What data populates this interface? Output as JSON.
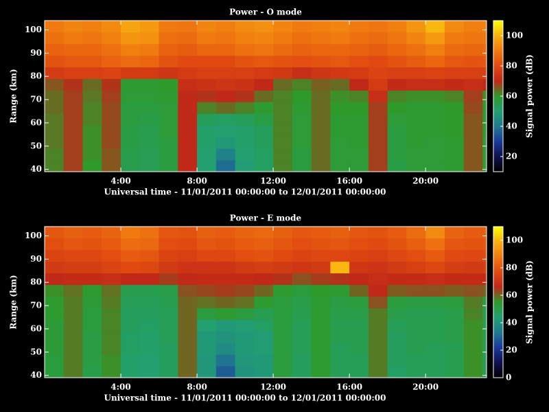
{
  "chart_data": [
    {
      "type": "heatmap",
      "title": "Power - O mode",
      "xlabel": "Universal time - 11/01/2011 00:00:00 to 12/01/2011 00:00:00",
      "ylabel": "Range (km)",
      "colorbar_label": "Signal power (dB)",
      "xlim": [
        0,
        23.2
      ],
      "ylim": [
        39,
        104
      ],
      "zlim": [
        10,
        110
      ],
      "xticks": [
        {
          "value": 4,
          "label": "4:00"
        },
        {
          "value": 8,
          "label": "8:00"
        },
        {
          "value": 12,
          "label": "12:00"
        },
        {
          "value": 16,
          "label": "16:00"
        },
        {
          "value": 20,
          "label": "20:00"
        }
      ],
      "yticks": [
        40,
        50,
        60,
        70,
        80,
        90,
        100
      ],
      "colorbar_ticks": [
        20,
        40,
        60,
        80,
        100
      ],
      "colormap": [
        "#000000",
        "#101050",
        "#1a3a9a",
        "#1f7a8f",
        "#22a070",
        "#2e9a2a",
        "#c02818",
        "#e04a10",
        "#f07a10",
        "#f8b010",
        "#ffff00"
      ],
      "x_bins": [
        0,
        1,
        2,
        3,
        4,
        5,
        6,
        7,
        8,
        9,
        10,
        11,
        12,
        13,
        14,
        15,
        16,
        17,
        18,
        19,
        20,
        21,
        22,
        23,
        23.2
      ],
      "y_bins": [
        39,
        44,
        49,
        54,
        59,
        64,
        69,
        74,
        79,
        84,
        89,
        94,
        99,
        104
      ],
      "values": [
        [
          62,
          68,
          60,
          66,
          55,
          54,
          57,
          70,
          50,
          38,
          49,
          52,
          62,
          57,
          64,
          58,
          58,
          68,
          56,
          58,
          58,
          59,
          66,
          58
        ],
        [
          62,
          68,
          61,
          66,
          55,
          54,
          57,
          70,
          50,
          42,
          50,
          52,
          62,
          57,
          64,
          58,
          58,
          68,
          57,
          58,
          58,
          59,
          66,
          58
        ],
        [
          63,
          68,
          61,
          67,
          56,
          55,
          57,
          70,
          51,
          48,
          51,
          53,
          62,
          58,
          64,
          58,
          59,
          68,
          57,
          59,
          58,
          59,
          66,
          58
        ],
        [
          63,
          68,
          61,
          67,
          56,
          55,
          58,
          70,
          51,
          50,
          51,
          53,
          62,
          58,
          64,
          59,
          59,
          68,
          57,
          59,
          59,
          60,
          66,
          59
        ],
        [
          63,
          68,
          62,
          67,
          57,
          56,
          58,
          70,
          53,
          52,
          53,
          56,
          62,
          58,
          64,
          59,
          59,
          68,
          58,
          59,
          59,
          60,
          66,
          59
        ],
        [
          64,
          68,
          62,
          67,
          57,
          57,
          58,
          70,
          62,
          64,
          62,
          59,
          62,
          59,
          64,
          60,
          60,
          68,
          60,
          59,
          59,
          60,
          67,
          59
        ],
        [
          64,
          68,
          63,
          68,
          58,
          58,
          59,
          70,
          69,
          70,
          69,
          64,
          62,
          60,
          64,
          61,
          62,
          72,
          62,
          61,
          61,
          62,
          68,
          61
        ],
        [
          66,
          69,
          64,
          69,
          59,
          59,
          60,
          72,
          73,
          74,
          73,
          70,
          64,
          62,
          65,
          64,
          70,
          76,
          71,
          72,
          72,
          71,
          72,
          70
        ],
        [
          76,
          77,
          77,
          78,
          76,
          76,
          74,
          76,
          77,
          77,
          77,
          76,
          75,
          72,
          74,
          75,
          76,
          78,
          77,
          77,
          78,
          77,
          77,
          77
        ],
        [
          82,
          83,
          83,
          85,
          87,
          86,
          82,
          80,
          80,
          80,
          82,
          83,
          82,
          81,
          82,
          83,
          81,
          80,
          82,
          84,
          86,
          83,
          82,
          83
        ],
        [
          85,
          86,
          86,
          88,
          91,
          90,
          85,
          84,
          86,
          86,
          88,
          89,
          87,
          85,
          86,
          86,
          85,
          84,
          86,
          88,
          91,
          87,
          86,
          87
        ],
        [
          88,
          90,
          89,
          91,
          95,
          94,
          88,
          87,
          90,
          89,
          91,
          92,
          90,
          88,
          89,
          90,
          88,
          87,
          89,
          92,
          96,
          90,
          89,
          90
        ],
        [
          90,
          92,
          91,
          93,
          98,
          96,
          90,
          89,
          92,
          91,
          93,
          94,
          92,
          90,
          91,
          92,
          90,
          89,
          91,
          95,
          101,
          93,
          91,
          92
        ]
      ]
    },
    {
      "type": "heatmap",
      "title": "Power - E mode",
      "xlabel": "Universal time - 11/01/2011 00:00:00 to 12/01/2011 00:00:00",
      "ylabel": "Range (km)",
      "colorbar_label": "Signal power (dB)",
      "xlim": [
        0,
        23.2
      ],
      "ylim": [
        39,
        104
      ],
      "zlim": [
        0,
        110
      ],
      "xticks": [
        {
          "value": 4,
          "label": "4:00"
        },
        {
          "value": 8,
          "label": "8:00"
        },
        {
          "value": 12,
          "label": "12:00"
        },
        {
          "value": 16,
          "label": "16:00"
        },
        {
          "value": 20,
          "label": "20:00"
        }
      ],
      "yticks": [
        40,
        50,
        60,
        70,
        80,
        90,
        100
      ],
      "colorbar_ticks": [
        0,
        20,
        40,
        60,
        80,
        100
      ],
      "colormap": [
        "#000000",
        "#101050",
        "#1a3a9a",
        "#1f7a8f",
        "#22a070",
        "#2e9a2a",
        "#c02818",
        "#e04a10",
        "#f07a10",
        "#f8b010",
        "#ffff00"
      ],
      "x_bins": [
        0,
        1,
        2,
        3,
        4,
        5,
        6,
        7,
        8,
        9,
        10,
        11,
        12,
        13,
        14,
        15,
        16,
        17,
        18,
        19,
        20,
        21,
        22,
        23,
        23.2
      ],
      "y_bins": [
        39,
        44,
        49,
        54,
        59,
        64,
        69,
        74,
        79,
        84,
        89,
        94,
        99,
        104
      ],
      "values": [
        [
          52,
          58,
          50,
          56,
          45,
          44,
          47,
          60,
          41,
          28,
          40,
          42,
          52,
          47,
          54,
          48,
          48,
          58,
          46,
          48,
          48,
          49,
          56,
          48
        ],
        [
          52,
          58,
          51,
          56,
          45,
          44,
          47,
          60,
          41,
          32,
          41,
          42,
          52,
          47,
          54,
          48,
          48,
          58,
          47,
          48,
          48,
          49,
          56,
          48
        ],
        [
          53,
          58,
          51,
          57,
          46,
          45,
          47,
          60,
          42,
          38,
          42,
          43,
          52,
          48,
          54,
          48,
          49,
          58,
          47,
          49,
          48,
          49,
          56,
          48
        ],
        [
          53,
          58,
          51,
          57,
          46,
          45,
          48,
          60,
          42,
          40,
          42,
          43,
          52,
          48,
          54,
          49,
          49,
          58,
          47,
          49,
          49,
          50,
          56,
          49
        ],
        [
          53,
          58,
          52,
          57,
          47,
          46,
          48,
          60,
          44,
          42,
          43,
          46,
          52,
          48,
          54,
          49,
          49,
          58,
          48,
          49,
          49,
          50,
          56,
          49
        ],
        [
          54,
          58,
          52,
          57,
          47,
          47,
          48,
          60,
          52,
          54,
          52,
          49,
          52,
          49,
          54,
          50,
          50,
          58,
          50,
          49,
          49,
          50,
          57,
          49
        ],
        [
          54,
          58,
          53,
          58,
          48,
          48,
          49,
          60,
          59,
          60,
          59,
          54,
          52,
          50,
          54,
          51,
          52,
          62,
          52,
          51,
          51,
          52,
          58,
          51
        ],
        [
          56,
          59,
          54,
          59,
          49,
          49,
          50,
          62,
          63,
          64,
          63,
          60,
          54,
          52,
          55,
          54,
          60,
          66,
          61,
          62,
          62,
          61,
          62,
          60
        ],
        [
          66,
          67,
          67,
          68,
          66,
          66,
          64,
          66,
          67,
          67,
          67,
          66,
          65,
          62,
          64,
          65,
          66,
          68,
          67,
          67,
          68,
          67,
          67,
          67
        ],
        [
          72,
          73,
          73,
          75,
          77,
          76,
          72,
          70,
          70,
          70,
          72,
          73,
          72,
          71,
          72,
          100,
          71,
          70,
          72,
          74,
          76,
          73,
          72,
          73
        ],
        [
          75,
          76,
          76,
          78,
          81,
          80,
          75,
          74,
          76,
          76,
          78,
          79,
          77,
          75,
          76,
          76,
          75,
          74,
          76,
          78,
          81,
          77,
          76,
          77
        ],
        [
          78,
          80,
          79,
          81,
          85,
          84,
          78,
          77,
          80,
          79,
          81,
          82,
          80,
          78,
          79,
          80,
          78,
          77,
          79,
          82,
          86,
          80,
          79,
          80
        ],
        [
          80,
          82,
          81,
          83,
          88,
          86,
          80,
          79,
          82,
          81,
          83,
          84,
          82,
          80,
          81,
          82,
          80,
          79,
          81,
          85,
          91,
          83,
          81,
          82
        ]
      ]
    }
  ]
}
